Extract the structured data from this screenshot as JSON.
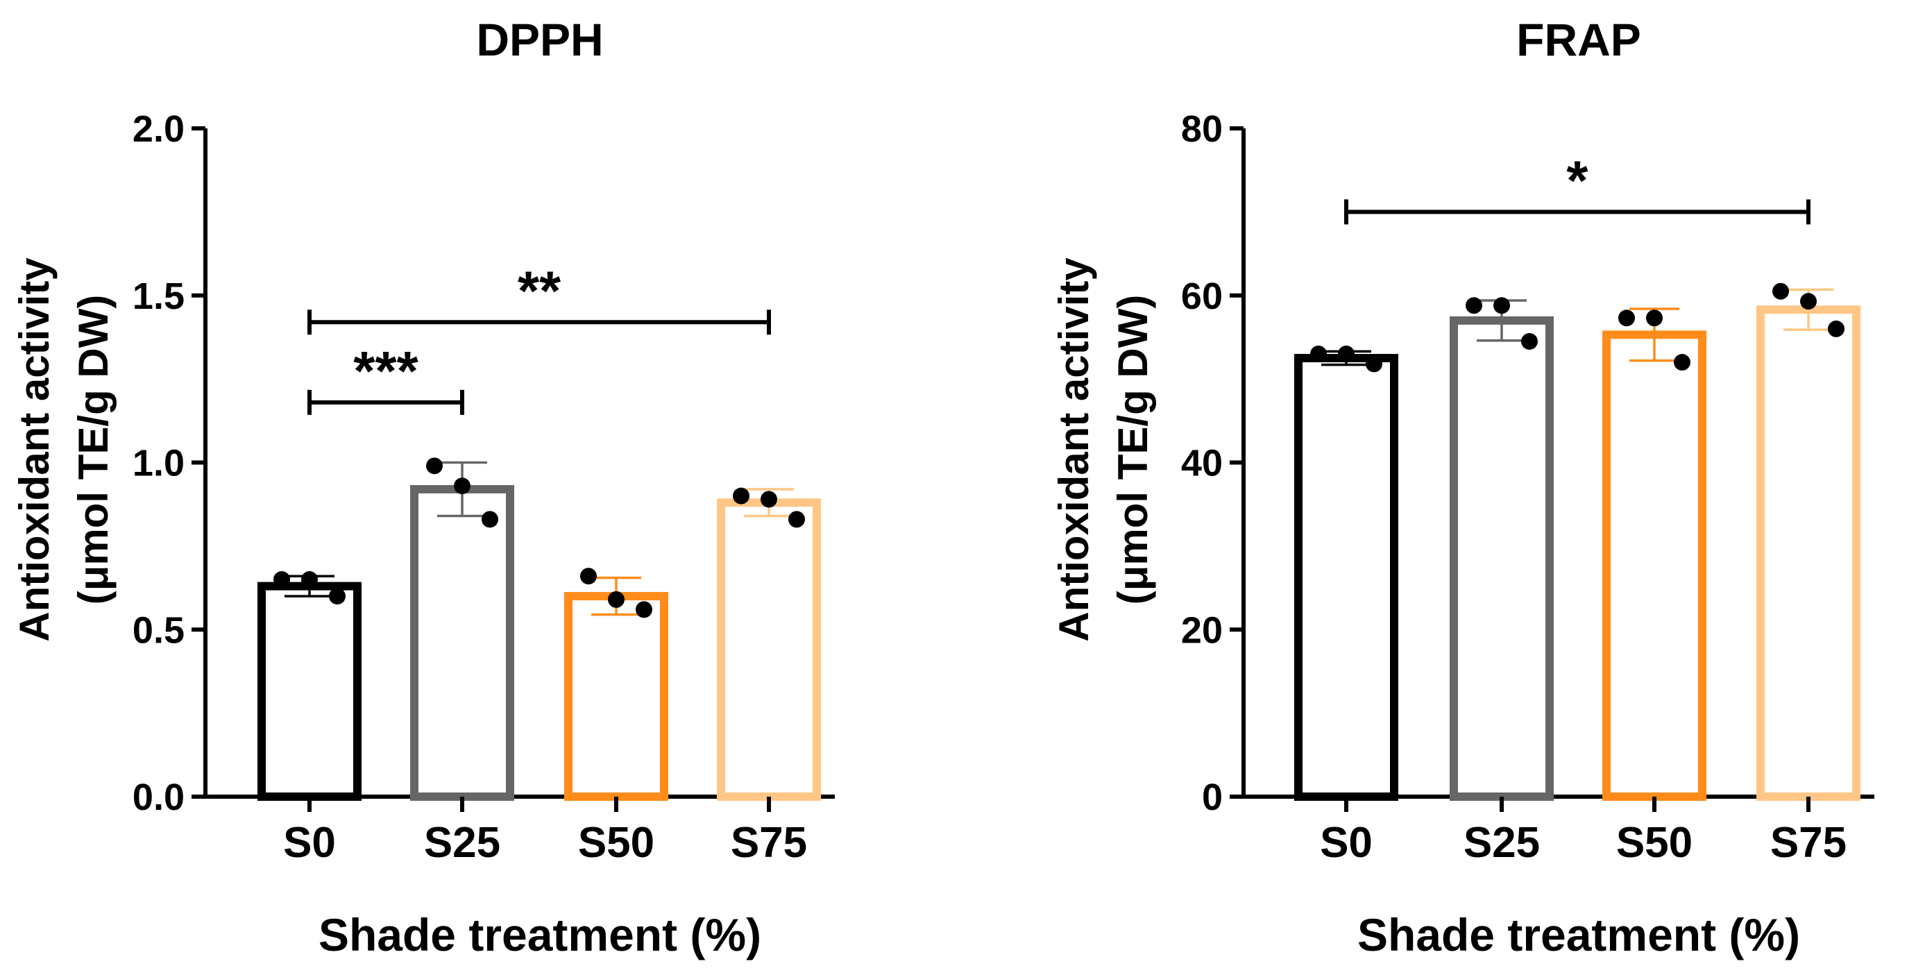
{
  "chart_data": [
    {
      "type": "bar",
      "title": "DPPH",
      "xlabel": "Shade treatment (%)",
      "ylabel_line1": "Antioxidant activity",
      "ylabel_line2": "(μmol TE/g DW)",
      "categories": [
        "S0",
        "S25",
        "S50",
        "S75"
      ],
      "values": [
        0.63,
        0.92,
        0.6,
        0.88
      ],
      "errors": [
        0.03,
        0.08,
        0.055,
        0.04
      ],
      "points": [
        [
          0.65,
          0.65,
          0.6
        ],
        [
          0.99,
          0.93,
          0.83
        ],
        [
          0.66,
          0.59,
          0.56
        ],
        [
          0.9,
          0.89,
          0.83
        ]
      ],
      "colors": [
        "#000000",
        "#666666",
        "#ff8c1a",
        "#ffc685"
      ],
      "ylim": [
        0,
        2.0
      ],
      "yticks": [
        "0.0",
        "0.5",
        "1.0",
        "1.5",
        "2.0"
      ],
      "ytick_values": [
        0,
        0.5,
        1.0,
        1.5,
        2.0
      ],
      "significance": [
        {
          "from": 0,
          "to": 1,
          "y": 1.18,
          "label": "***"
        },
        {
          "from": 0,
          "to": 3,
          "y": 1.42,
          "label": "**"
        }
      ]
    },
    {
      "type": "bar",
      "title": "FRAP",
      "xlabel": "Shade treatment (%)",
      "ylabel_line1": "Antioxidant activity",
      "ylabel_line2": "(μmol TE/g DW)",
      "categories": [
        "S0",
        "S25",
        "S50",
        "S75"
      ],
      "values": [
        52.5,
        57.0,
        55.3,
        58.3
      ],
      "errors": [
        0.8,
        2.4,
        3.1,
        2.4
      ],
      "points": [
        [
          53.0,
          53.0,
          51.8
        ],
        [
          58.8,
          58.8,
          54.5
        ],
        [
          57.3,
          57.3,
          52.0
        ],
        [
          60.5,
          59.3,
          56.0
        ]
      ],
      "colors": [
        "#000000",
        "#666666",
        "#ff8c1a",
        "#ffc685"
      ],
      "ylim": [
        0,
        80
      ],
      "yticks": [
        "0",
        "20",
        "40",
        "60",
        "80"
      ],
      "ytick_values": [
        0,
        20,
        40,
        60,
        80
      ],
      "significance": [
        {
          "from": 0,
          "to": 3,
          "y": 70,
          "label": "*"
        }
      ]
    }
  ]
}
